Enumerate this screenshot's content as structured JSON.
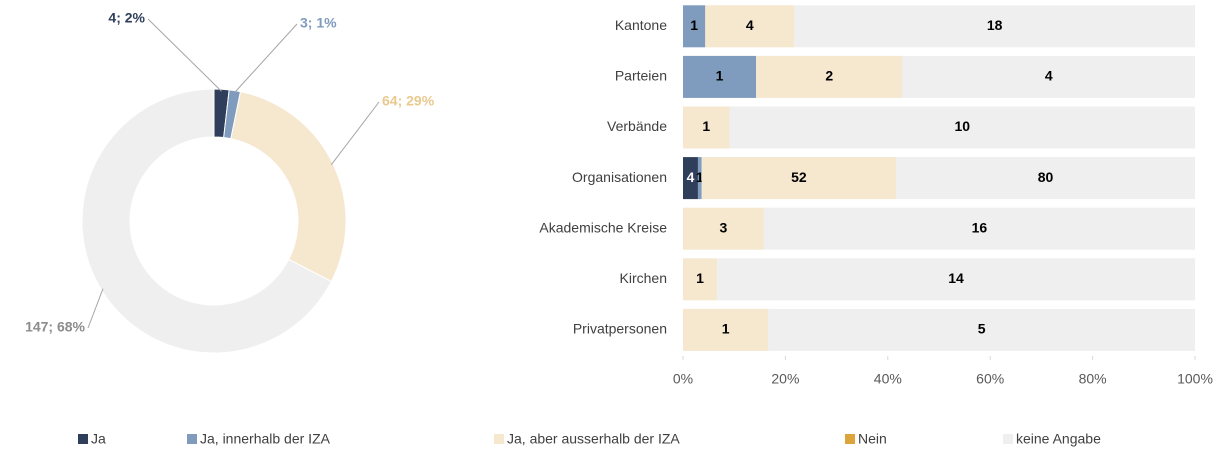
{
  "chart_data": [
    {
      "type": "donut",
      "values": [
        4,
        3,
        64,
        147
      ],
      "value_labels": [
        "4; 2%",
        "3; 1%",
        "64; 29%",
        "147; 68%"
      ],
      "colors": [
        "#2f3f5b",
        "#7f9bbd",
        "#f6e7cf",
        "#efefef"
      ],
      "label_colors": [
        "#2f3f5b",
        "#7f9bbd",
        "#e9c98e",
        "#8c8c8c"
      ]
    },
    {
      "type": "stacked_bar_percent",
      "categories": [
        "Kantone",
        "Parteien",
        "Verbände",
        "Organisationen",
        "Akademische Kreise",
        "Kirchen",
        "Privatpersonen"
      ],
      "series": [
        {
          "name": "Ja",
          "color": "#2f3f5b",
          "values": [
            0,
            0,
            0,
            4,
            0,
            0,
            0
          ]
        },
        {
          "name": "Ja, innerhalb der IZA",
          "color": "#7f9bbd",
          "values": [
            1,
            1,
            0,
            1,
            0,
            0,
            0
          ]
        },
        {
          "name": "Ja, aber ausserhalb der IZA",
          "color": "#f6e7cf",
          "values": [
            4,
            2,
            1,
            52,
            3,
            1,
            1
          ]
        },
        {
          "name": "Nein",
          "color": "#dca43a",
          "values": [
            0,
            0,
            0,
            0,
            0,
            0,
            0
          ]
        },
        {
          "name": "keine Angabe",
          "color": "#efefef",
          "values": [
            18,
            4,
            10,
            80,
            16,
            14,
            5
          ]
        }
      ],
      "xlim": [
        0,
        100
      ],
      "xticks": [
        {
          "value": 0,
          "label": "0%"
        },
        {
          "value": 20,
          "label": "20%"
        },
        {
          "value": 40,
          "label": "40%"
        },
        {
          "value": 60,
          "label": "60%"
        },
        {
          "value": 80,
          "label": "80%"
        },
        {
          "value": 100,
          "label": "100%"
        }
      ],
      "grid": false,
      "legend": "bottom"
    }
  ]
}
